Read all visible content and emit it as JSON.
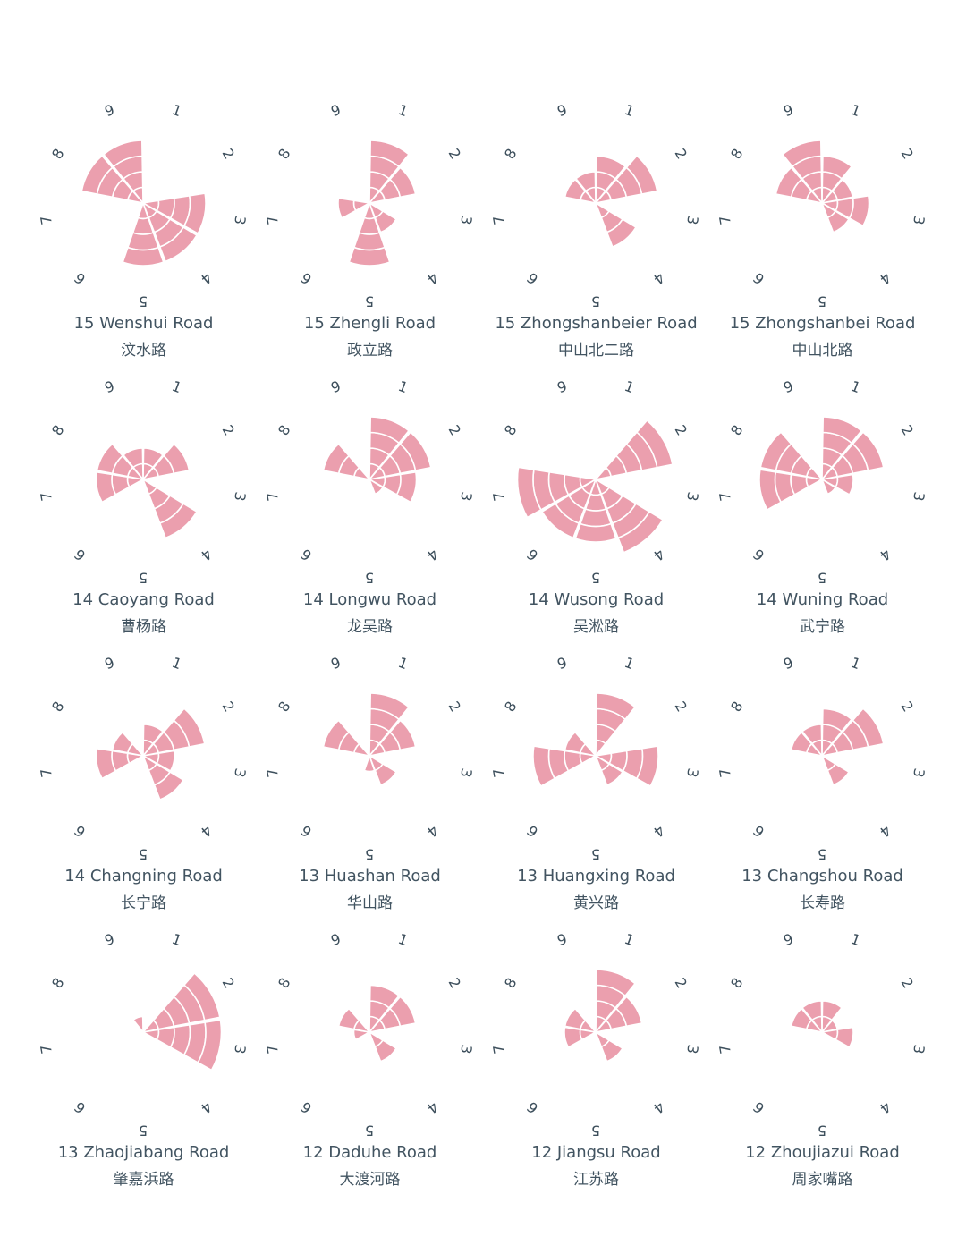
{
  "direction_labels": [
    "1",
    "2",
    "3",
    "4",
    "5",
    "6",
    "7",
    "8",
    "9"
  ],
  "colors": {
    "petal": "#eb9fae",
    "text": "#425461"
  },
  "chart_data": [
    {
      "type": "rose",
      "title_en": "15 Wenshui Road",
      "title_zh": "汶水路",
      "categories": [
        "1",
        "2",
        "3",
        "4",
        "5",
        "6",
        "7",
        "8",
        "9"
      ],
      "values": [
        0,
        0,
        4,
        4,
        4,
        0,
        0,
        4,
        4
      ]
    },
    {
      "type": "rose",
      "title_en": "15 Zhengli Road",
      "title_zh": "政立路",
      "categories": [
        "1",
        "2",
        "3",
        "4",
        "5",
        "6",
        "7",
        "8",
        "9"
      ],
      "values": [
        4,
        3,
        0,
        2,
        4,
        0,
        2,
        0,
        0
      ]
    },
    {
      "type": "rose",
      "title_en": "15 Zhongshanbeier Road",
      "title_zh": "中山北二路",
      "categories": [
        "1",
        "2",
        "3",
        "4",
        "5",
        "6",
        "7",
        "8",
        "9"
      ],
      "values": [
        3,
        4,
        0,
        3,
        0,
        0,
        0,
        2,
        2
      ]
    },
    {
      "type": "rose",
      "title_en": "15 Zhongshanbei Road",
      "title_zh": "中山北路",
      "categories": [
        "1",
        "2",
        "3",
        "4",
        "5",
        "6",
        "7",
        "8",
        "9"
      ],
      "values": [
        3,
        2,
        3,
        2,
        0,
        0,
        0,
        3,
        4
      ]
    },
    {
      "type": "rose",
      "title_en": "14 Caoyang Road",
      "title_zh": "曹杨路",
      "categories": [
        "1",
        "2",
        "3",
        "4",
        "5",
        "6",
        "7",
        "8",
        "9"
      ],
      "values": [
        2,
        3,
        0,
        4,
        0,
        0,
        3,
        3,
        2
      ]
    },
    {
      "type": "rose",
      "title_en": "14 Longwu Road",
      "title_zh": "龙吴路",
      "categories": [
        "1",
        "2",
        "3",
        "4",
        "5",
        "6",
        "7",
        "8",
        "9"
      ],
      "values": [
        4,
        4,
        3,
        1,
        0,
        0,
        0,
        3,
        0
      ]
    },
    {
      "type": "rose",
      "title_en": "14 Wusong Road",
      "title_zh": "吴淞路",
      "categories": [
        "1",
        "2",
        "3",
        "4",
        "5",
        "6",
        "7",
        "8",
        "9"
      ],
      "values": [
        0,
        5,
        0,
        5,
        4,
        4,
        5,
        0,
        0
      ]
    },
    {
      "type": "rose",
      "title_en": "14 Wuning Road",
      "title_zh": "武宁路",
      "categories": [
        "1",
        "2",
        "3",
        "4",
        "5",
        "6",
        "7",
        "8",
        "9"
      ],
      "values": [
        4,
        4,
        2,
        1,
        0,
        0,
        4,
        4,
        0
      ]
    },
    {
      "type": "rose",
      "title_en": "14 Changning Road",
      "title_zh": "长宁路",
      "categories": [
        "1",
        "2",
        "3",
        "4",
        "5",
        "6",
        "7",
        "8",
        "9"
      ],
      "values": [
        2,
        4,
        2,
        3,
        0,
        0,
        3,
        2,
        0
      ]
    },
    {
      "type": "rose",
      "title_en": "13 Huashan Road",
      "title_zh": "华山路",
      "categories": [
        "1",
        "2",
        "3",
        "4",
        "5",
        "6",
        "7",
        "8",
        "9"
      ],
      "values": [
        4,
        3,
        0,
        2,
        1,
        0,
        0,
        3,
        0
      ]
    },
    {
      "type": "rose",
      "title_en": "13 Huangxing Road",
      "title_zh": "黄兴路",
      "categories": [
        "1",
        "2",
        "3",
        "4",
        "5",
        "6",
        "7",
        "8",
        "9"
      ],
      "values": [
        4,
        0,
        4,
        2,
        0,
        0,
        4,
        2,
        0
      ]
    },
    {
      "type": "rose",
      "title_en": "13 Changshou Road",
      "title_zh": "长寿路",
      "categories": [
        "1",
        "2",
        "3",
        "4",
        "5",
        "6",
        "7",
        "8",
        "9"
      ],
      "values": [
        3,
        4,
        0,
        2,
        0,
        0,
        0,
        2,
        2
      ]
    },
    {
      "type": "rose",
      "title_en": "13 Zhaojiabang Road",
      "title_zh": "肇嘉浜路",
      "categories": [
        "1",
        "2",
        "3",
        "4",
        "5",
        "6",
        "7",
        "8",
        "9"
      ],
      "values": [
        0,
        5,
        5,
        0,
        0,
        0,
        0,
        0,
        1
      ]
    },
    {
      "type": "rose",
      "title_en": "12 Daduhe Road",
      "title_zh": "大渡河路",
      "categories": [
        "1",
        "2",
        "3",
        "4",
        "5",
        "6",
        "7",
        "8",
        "9"
      ],
      "values": [
        3,
        3,
        0,
        2,
        0,
        0,
        1,
        2,
        0
      ]
    },
    {
      "type": "rose",
      "title_en": "12 Jiangsu Road",
      "title_zh": "江苏路",
      "categories": [
        "1",
        "2",
        "3",
        "4",
        "5",
        "6",
        "7",
        "8",
        "9"
      ],
      "values": [
        4,
        3,
        0,
        2,
        0,
        0,
        2,
        2,
        0
      ]
    },
    {
      "type": "rose",
      "title_en": "12 Zhoujiazui Road",
      "title_zh": "周家嘴路",
      "categories": [
        "1",
        "2",
        "3",
        "4",
        "5",
        "6",
        "7",
        "8",
        "9"
      ],
      "values": [
        2,
        1,
        2,
        0,
        0,
        0,
        0,
        2,
        2
      ]
    }
  ]
}
